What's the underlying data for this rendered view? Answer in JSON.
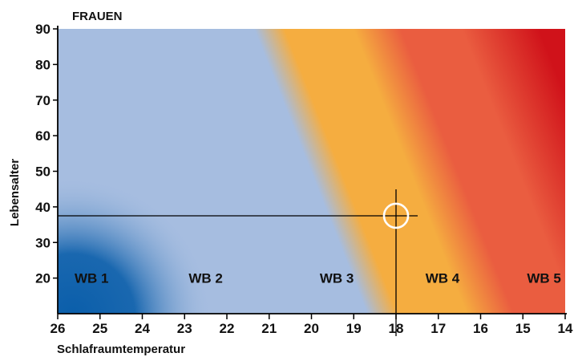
{
  "chart_data": {
    "type": "heatmap",
    "title": "FRAUEN",
    "xlabel": "Schlafraumtemperatur",
    "ylabel": "Lebensalter",
    "xlim": [
      26,
      14
    ],
    "ylim": [
      10,
      90
    ],
    "xticks": [
      26,
      25,
      24,
      23,
      22,
      21,
      20,
      19,
      18,
      17,
      16,
      15,
      14
    ],
    "yticks": [
      20,
      30,
      40,
      50,
      60,
      70,
      80,
      90
    ],
    "zones": [
      {
        "label": "WB 1",
        "x": 25.2,
        "y": 20
      },
      {
        "label": "WB 2",
        "x": 22.5,
        "y": 20
      },
      {
        "label": "WB 3",
        "x": 19.4,
        "y": 20
      },
      {
        "label": "WB 4",
        "x": 16.9,
        "y": 20
      },
      {
        "label": "WB 5",
        "x": 14.5,
        "y": 20
      }
    ],
    "marker": {
      "x": 18,
      "y": 37.5
    },
    "colors": {
      "wb1": "#0a5eaa",
      "wb2": "#a6bde0",
      "wb3": "#f5ad40",
      "wb4": "#ea5d40",
      "wb5": "#d0121a",
      "marker": "#ffffff",
      "lines": "#000000"
    }
  }
}
